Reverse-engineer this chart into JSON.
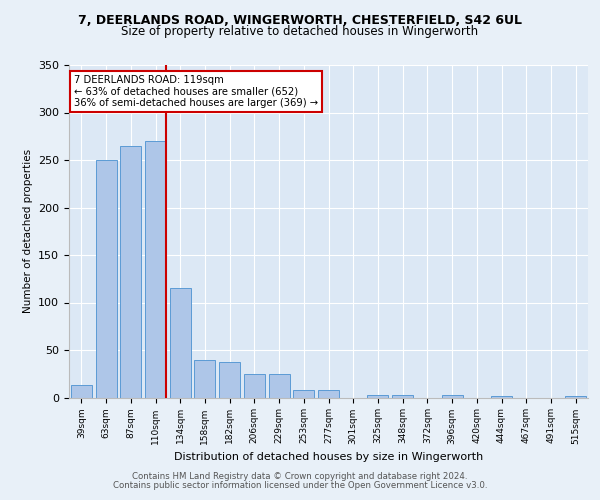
{
  "title_line1": "7, DEERLANDS ROAD, WINGERWORTH, CHESTERFIELD, S42 6UL",
  "title_line2": "Size of property relative to detached houses in Wingerworth",
  "xlabel": "Distribution of detached houses by size in Wingerworth",
  "ylabel": "Number of detached properties",
  "categories": [
    "39sqm",
    "63sqm",
    "87sqm",
    "110sqm",
    "134sqm",
    "158sqm",
    "182sqm",
    "206sqm",
    "229sqm",
    "253sqm",
    "277sqm",
    "301sqm",
    "325sqm",
    "348sqm",
    "372sqm",
    "396sqm",
    "420sqm",
    "444sqm",
    "467sqm",
    "491sqm",
    "515sqm"
  ],
  "values": [
    13,
    250,
    265,
    270,
    115,
    40,
    37,
    25,
    25,
    8,
    8,
    0,
    3,
    3,
    0,
    3,
    0,
    2,
    0,
    0,
    2
  ],
  "bar_color": "#aec6e8",
  "bar_edge_color": "#5b9bd5",
  "vline_color": "#cc0000",
  "annotation_text1": "7 DEERLANDS ROAD: 119sqm",
  "annotation_text2": "← 63% of detached houses are smaller (652)",
  "annotation_text3": "36% of semi-detached houses are larger (369) →",
  "annotation_box_color": "#ffffff",
  "annotation_border_color": "#cc0000",
  "background_color": "#e8f0f8",
  "plot_bg_color": "#dce8f5",
  "grid_color": "#ffffff",
  "ylim": [
    0,
    350
  ],
  "yticks": [
    0,
    50,
    100,
    150,
    200,
    250,
    300,
    350
  ],
  "footer1": "Contains HM Land Registry data © Crown copyright and database right 2024.",
  "footer2": "Contains public sector information licensed under the Open Government Licence v3.0."
}
